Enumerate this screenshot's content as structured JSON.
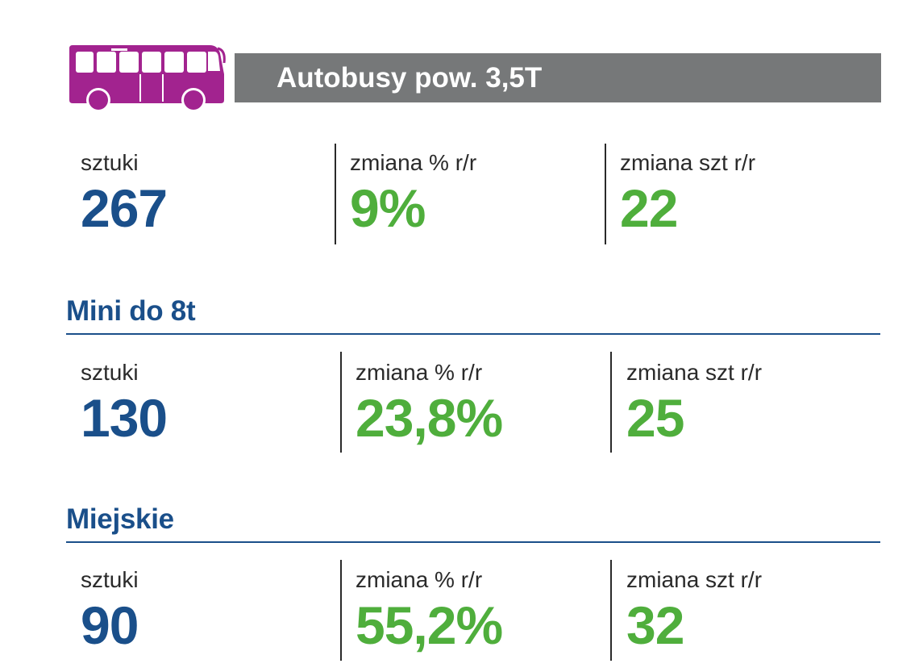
{
  "header": {
    "icon": "bus-icon",
    "icon_color": "#a2238f",
    "bar_color": "#767879",
    "title": "Autobusy pow. 3,5T"
  },
  "colors": {
    "title_blue": "#1a4f8a",
    "value_blue": "#1a4f8a",
    "value_green": "#4fae3c"
  },
  "groups": [
    {
      "title": "",
      "stats": [
        {
          "label": "sztuki",
          "value": "267"
        },
        {
          "label": "zmiana % r/r",
          "value": "9%"
        },
        {
          "label": "zmiana szt r/r",
          "value": "22"
        }
      ]
    },
    {
      "title": "Mini do 8t",
      "stats": [
        {
          "label": "sztuki",
          "value": "130"
        },
        {
          "label": "zmiana % r/r",
          "value": "23,8%"
        },
        {
          "label": "zmiana szt r/r",
          "value": "25"
        }
      ]
    },
    {
      "title": "Miejskie",
      "stats": [
        {
          "label": "sztuki",
          "value": "90"
        },
        {
          "label": "zmiana % r/r",
          "value": "55,2%"
        },
        {
          "label": "zmiana szt r/r",
          "value": "32"
        }
      ]
    }
  ]
}
